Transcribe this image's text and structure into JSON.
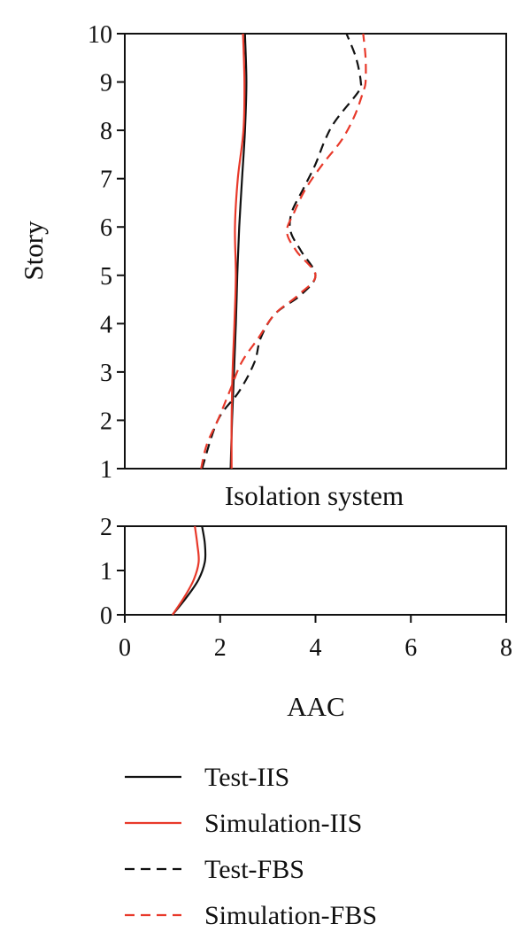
{
  "chart_data": [
    {
      "type": "line",
      "panel": "upper",
      "title": "",
      "xlabel": "",
      "ylabel": "Story",
      "xlim": [
        0,
        8
      ],
      "ylim": [
        1,
        10
      ],
      "yticks": [
        "1",
        "2",
        "3",
        "4",
        "5",
        "6",
        "7",
        "8",
        "9",
        "10"
      ],
      "grid": false,
      "series": [
        {
          "name": "Test-IIS",
          "color": "#111111",
          "dash": "solid",
          "points": [
            [
              2.22,
              1
            ],
            [
              2.25,
              2
            ],
            [
              2.29,
              3
            ],
            [
              2.33,
              4
            ],
            [
              2.36,
              5
            ],
            [
              2.4,
              6
            ],
            [
              2.46,
              7
            ],
            [
              2.52,
              8
            ],
            [
              2.55,
              9
            ],
            [
              2.52,
              10
            ]
          ]
        },
        {
          "name": "Simulation-IIS",
          "color": "#e8392a",
          "dash": "solid",
          "points": [
            [
              2.24,
              1
            ],
            [
              2.24,
              2
            ],
            [
              2.26,
              3
            ],
            [
              2.3,
              4
            ],
            [
              2.33,
              5
            ],
            [
              2.31,
              6
            ],
            [
              2.37,
              7
            ],
            [
              2.49,
              8
            ],
            [
              2.51,
              9
            ],
            [
              2.48,
              10
            ]
          ]
        },
        {
          "name": "Test-FBS",
          "color": "#111111",
          "dash": "dashed",
          "points": [
            [
              1.62,
              1
            ],
            [
              1.95,
              2
            ],
            [
              2.4,
              2.6
            ],
            [
              2.72,
              3.2
            ],
            [
              2.85,
              3.7
            ],
            [
              3.15,
              4.2
            ],
            [
              3.7,
              4.6
            ],
            [
              4.0,
              5
            ],
            [
              3.7,
              5.5
            ],
            [
              3.48,
              5.9
            ],
            [
              3.5,
              6.3
            ],
            [
              3.75,
              6.8
            ],
            [
              4.0,
              7.3
            ],
            [
              4.2,
              7.8
            ],
            [
              4.42,
              8.2
            ],
            [
              4.9,
              8.8
            ],
            [
              4.95,
              9
            ],
            [
              4.85,
              9.5
            ],
            [
              4.65,
              10
            ]
          ]
        },
        {
          "name": "Simulation-FBS",
          "color": "#e8392a",
          "dash": "dashed",
          "points": [
            [
              1.6,
              1
            ],
            [
              1.72,
              1.5
            ],
            [
              1.95,
              2
            ],
            [
              2.2,
              2.6
            ],
            [
              2.45,
              3.2
            ],
            [
              2.8,
              3.7
            ],
            [
              3.15,
              4.2
            ],
            [
              3.65,
              4.6
            ],
            [
              4.0,
              5
            ],
            [
              3.6,
              5.5
            ],
            [
              3.4,
              5.9
            ],
            [
              3.55,
              6.3
            ],
            [
              3.8,
              6.8
            ],
            [
              4.15,
              7.3
            ],
            [
              4.55,
              7.8
            ],
            [
              4.82,
              8.3
            ],
            [
              5.0,
              8.8
            ],
            [
              5.05,
              9
            ],
            [
              5.05,
              9.5
            ],
            [
              5.0,
              10
            ]
          ]
        }
      ]
    },
    {
      "type": "line",
      "panel": "lower",
      "title": "Isolation system",
      "xlabel": "AAC",
      "ylabel": "",
      "xlim": [
        0,
        8
      ],
      "ylim": [
        0,
        2
      ],
      "xticks": [
        "0",
        "2",
        "4",
        "6",
        "8"
      ],
      "yticks": [
        "0",
        "1",
        "2"
      ],
      "grid": false,
      "series": [
        {
          "name": "Test-IIS",
          "color": "#111111",
          "dash": "solid",
          "points": [
            [
              1.0,
              0
            ],
            [
              1.3,
              0.4
            ],
            [
              1.55,
              0.8
            ],
            [
              1.68,
              1.2
            ],
            [
              1.68,
              1.6
            ],
            [
              1.62,
              2
            ]
          ]
        },
        {
          "name": "Simulation-IIS",
          "color": "#e8392a",
          "dash": "solid",
          "points": [
            [
              1.0,
              0
            ],
            [
              1.25,
              0.4
            ],
            [
              1.45,
              0.8
            ],
            [
              1.55,
              1.2
            ],
            [
              1.52,
              1.6
            ],
            [
              1.47,
              2
            ]
          ]
        }
      ]
    }
  ],
  "legend": {
    "placement": "bottom",
    "entries": [
      {
        "label": "Test-IIS",
        "color": "#111111",
        "dash": "solid"
      },
      {
        "label": "Simulation-IIS",
        "color": "#e8392a",
        "dash": "solid"
      },
      {
        "label": "Test-FBS",
        "color": "#111111",
        "dash": "dashed"
      },
      {
        "label": "Simulation-FBS",
        "color": "#e8392a",
        "dash": "dashed"
      }
    ]
  }
}
